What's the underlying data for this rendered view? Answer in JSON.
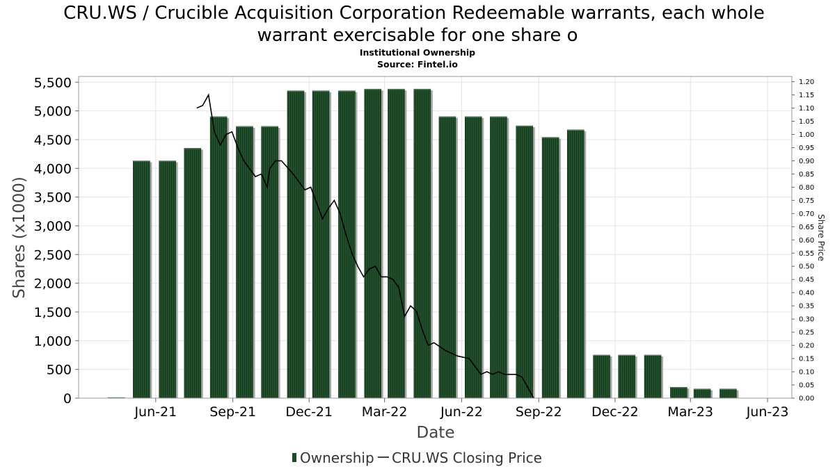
{
  "chart_data": {
    "type": "bar",
    "title_line1": "CRU.WS / Crucible Acquisition Corporation Redeemable warrants, each whole",
    "title_line2": "warrant exercisable for one share o",
    "subtitle1": "Institutional Ownership",
    "subtitle2": "Source: Fintel.io",
    "xlabel": "Date",
    "ylabel": "Shares (x1000)",
    "ylabel_right": "Share Price",
    "x_tick_labels": [
      "Jun-21",
      "Sep-21",
      "Dec-21",
      "Mar-22",
      "Jun-22",
      "Sep-22",
      "Dec-22",
      "Mar-23",
      "Jun-23"
    ],
    "y_tick_labels": [
      "0",
      "500",
      "1,000",
      "1,500",
      "2,000",
      "2,500",
      "3,000",
      "3,500",
      "4,000",
      "4,500",
      "5,000",
      "5,500"
    ],
    "y2_tick_labels": [
      "0.00",
      "0.05",
      "0.10",
      "0.15",
      "0.20",
      "0.25",
      "0.30",
      "0.35",
      "0.40",
      "0.45",
      "0.50",
      "0.55",
      "0.60",
      "0.65",
      "0.70",
      "0.75",
      "0.80",
      "0.85",
      "0.90",
      "0.95",
      "1.00",
      "1.05",
      "1.10",
      "1.15",
      "1.20"
    ],
    "ylim": [
      0,
      5600
    ],
    "y2lim": [
      0,
      1.22
    ],
    "legend_position": "bottom-center",
    "grid": true,
    "series": [
      {
        "name": "Ownership",
        "color": "#1e4a2a",
        "points": [
          [
            "2021-04-15",
            10
          ],
          [
            "2021-05-15",
            4130
          ],
          [
            "2021-06-15",
            4130
          ],
          [
            "2021-07-15",
            4350
          ],
          [
            "2021-08-15",
            4900
          ],
          [
            "2021-09-15",
            4730
          ],
          [
            "2021-10-15",
            4730
          ],
          [
            "2021-11-15",
            5350
          ],
          [
            "2021-12-15",
            5350
          ],
          [
            "2022-01-15",
            5350
          ],
          [
            "2022-02-15",
            5380
          ],
          [
            "2022-03-15",
            5380
          ],
          [
            "2022-04-15",
            5380
          ],
          [
            "2022-05-15",
            4900
          ],
          [
            "2022-06-15",
            4900
          ],
          [
            "2022-07-15",
            4900
          ],
          [
            "2022-08-15",
            4740
          ],
          [
            "2022-09-15",
            4540
          ],
          [
            "2022-10-15",
            4670
          ],
          [
            "2022-11-15",
            750
          ],
          [
            "2022-12-15",
            750
          ],
          [
            "2023-01-15",
            750
          ],
          [
            "2023-02-15",
            190
          ],
          [
            "2023-03-15",
            160
          ],
          [
            "2023-04-15",
            160
          ]
        ]
      },
      {
        "name": "CRU.WS Closing Price",
        "color": "#000000",
        "points": [
          [
            "2021-07-20",
            1.1
          ],
          [
            "2021-07-27",
            1.11
          ],
          [
            "2021-08-03",
            1.15
          ],
          [
            "2021-08-10",
            1.01
          ],
          [
            "2021-08-17",
            0.96
          ],
          [
            "2021-08-24",
            1.0
          ],
          [
            "2021-08-31",
            1.01
          ],
          [
            "2021-09-07",
            0.95
          ],
          [
            "2021-09-14",
            0.9
          ],
          [
            "2021-09-21",
            0.87
          ],
          [
            "2021-09-28",
            0.84
          ],
          [
            "2021-10-05",
            0.85
          ],
          [
            "2021-10-12",
            0.8
          ],
          [
            "2021-10-15",
            0.87
          ],
          [
            "2021-10-22",
            0.9
          ],
          [
            "2021-10-29",
            0.9
          ],
          [
            "2021-11-12",
            0.85
          ],
          [
            "2021-11-26",
            0.79
          ],
          [
            "2021-12-03",
            0.8
          ],
          [
            "2021-12-10",
            0.74
          ],
          [
            "2021-12-17",
            0.68
          ],
          [
            "2021-12-24",
            0.72
          ],
          [
            "2021-12-31",
            0.75
          ],
          [
            "2022-01-07",
            0.7
          ],
          [
            "2022-01-14",
            0.62
          ],
          [
            "2022-01-21",
            0.55
          ],
          [
            "2022-01-28",
            0.5
          ],
          [
            "2022-02-04",
            0.46
          ],
          [
            "2022-02-11",
            0.49
          ],
          [
            "2022-02-18",
            0.5
          ],
          [
            "2022-02-25",
            0.46
          ],
          [
            "2022-03-04",
            0.46
          ],
          [
            "2022-03-11",
            0.45
          ],
          [
            "2022-03-18",
            0.42
          ],
          [
            "2022-03-25",
            0.31
          ],
          [
            "2022-04-01",
            0.35
          ],
          [
            "2022-04-08",
            0.33
          ],
          [
            "2022-04-15",
            0.26
          ],
          [
            "2022-04-22",
            0.2
          ],
          [
            "2022-04-29",
            0.21
          ],
          [
            "2022-05-13",
            0.18
          ],
          [
            "2022-05-27",
            0.16
          ],
          [
            "2022-06-10",
            0.15
          ],
          [
            "2022-06-17",
            0.12
          ],
          [
            "2022-06-24",
            0.09
          ],
          [
            "2022-07-01",
            0.1
          ],
          [
            "2022-07-08",
            0.09
          ],
          [
            "2022-07-15",
            0.1
          ],
          [
            "2022-07-22",
            0.09
          ],
          [
            "2022-07-29",
            0.09
          ],
          [
            "2022-08-05",
            0.09
          ],
          [
            "2022-08-12",
            0.08
          ],
          [
            "2022-08-19",
            0.04
          ],
          [
            "2022-08-26",
            0.0
          ]
        ]
      }
    ]
  }
}
